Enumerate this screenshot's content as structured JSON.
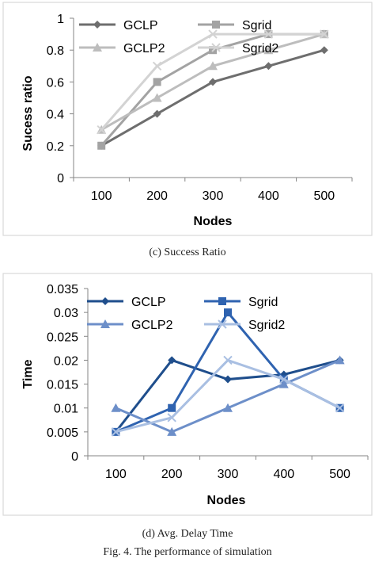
{
  "figure": {
    "caption": "Fig. 4.   The performance of simulation"
  },
  "chart_data": [
    {
      "type": "line",
      "caption": "(c) Success Ratio",
      "xlabel": "Nodes",
      "ylabel": "Sucess ratio",
      "categories": [
        "100",
        "200",
        "300",
        "400",
        "500"
      ],
      "ylim": [
        0,
        1
      ],
      "yticks": [
        0,
        0.2,
        0.4,
        0.6,
        0.8,
        1
      ],
      "ytick_labels": [
        "0",
        "0.2",
        "0.4",
        "0.6",
        "0.8",
        "1"
      ],
      "grid": false,
      "legend_position": "top-left-inside",
      "series": [
        {
          "name": "GCLP",
          "values": [
            0.2,
            0.4,
            0.6,
            0.7,
            0.8
          ],
          "color": "#6e6e6e",
          "marker": "diamond"
        },
        {
          "name": "Sgrid",
          "values": [
            0.2,
            0.6,
            0.8,
            0.9,
            0.9
          ],
          "color": "#a3a3a3",
          "marker": "square"
        },
        {
          "name": "GCLP2",
          "values": [
            0.3,
            0.5,
            0.7,
            0.8,
            0.9
          ],
          "color": "#bdbdbd",
          "marker": "triangle"
        },
        {
          "name": "Sgrid2",
          "values": [
            0.3,
            0.7,
            0.9,
            0.9,
            0.9
          ],
          "color": "#d3d3d3",
          "marker": "x"
        }
      ]
    },
    {
      "type": "line",
      "caption": "(d) Avg. Delay Time",
      "xlabel": "Nodes",
      "ylabel": "Time",
      "categories": [
        "100",
        "200",
        "300",
        "400",
        "500"
      ],
      "ylim": [
        0,
        0.035
      ],
      "yticks": [
        0,
        0.005,
        0.01,
        0.015,
        0.02,
        0.025,
        0.03,
        0.035
      ],
      "ytick_labels": [
        "0",
        "0.005",
        "0.01",
        "0.015",
        "0.02",
        "0.025",
        "0.03",
        "0.035"
      ],
      "grid": false,
      "legend_position": "top-left-inside",
      "series": [
        {
          "name": "GCLP",
          "values": [
            0.005,
            0.02,
            0.016,
            0.017,
            0.02
          ],
          "color": "#1f4e8c",
          "marker": "diamond"
        },
        {
          "name": "Sgrid",
          "values": [
            0.005,
            0.01,
            0.03,
            0.016,
            0.01
          ],
          "color": "#2f63b0",
          "marker": "square"
        },
        {
          "name": "GCLP2",
          "values": [
            0.01,
            0.005,
            0.01,
            0.015,
            0.02
          ],
          "color": "#6d8fc9",
          "marker": "triangle"
        },
        {
          "name": "Sgrid2",
          "values": [
            0.005,
            0.008,
            0.02,
            0.016,
            0.01
          ],
          "color": "#a9bfe2",
          "marker": "x"
        }
      ]
    }
  ]
}
